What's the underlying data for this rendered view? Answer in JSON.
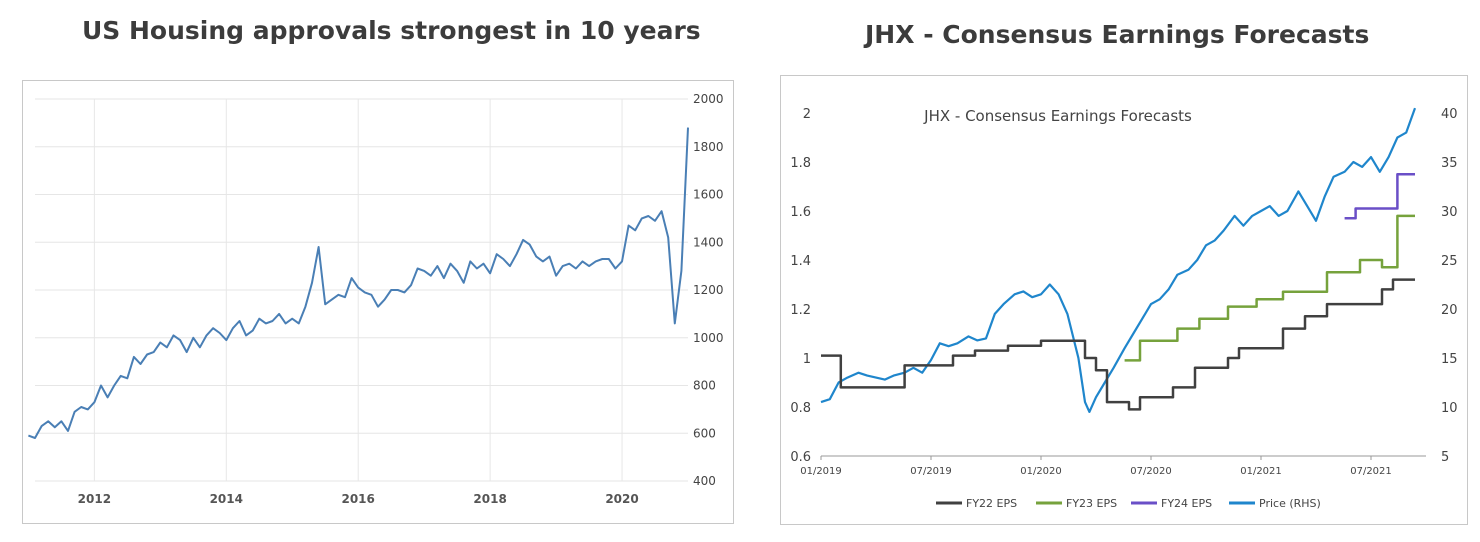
{
  "chart_data": [
    {
      "type": "line",
      "title": "US Housing approvals strongest in 10 years",
      "xlabel": "",
      "ylabel": "",
      "xlim": [
        2011.1,
        2021.0
      ],
      "ylim": [
        400,
        2000
      ],
      "x_ticks": [
        2012,
        2014,
        2016,
        2018,
        2020
      ],
      "y_ticks": [
        400,
        600,
        800,
        1000,
        1200,
        1400,
        1600,
        1800,
        2000
      ],
      "grid": true,
      "legend": "none",
      "color": "#4a7fb5",
      "series": [
        {
          "name": "US Housing approvals",
          "x": [
            2011.0,
            2011.1,
            2011.2,
            2011.3,
            2011.4,
            2011.5,
            2011.6,
            2011.7,
            2011.8,
            2011.9,
            2012.0,
            2012.1,
            2012.2,
            2012.3,
            2012.4,
            2012.5,
            2012.6,
            2012.7,
            2012.8,
            2012.9,
            2013.0,
            2013.1,
            2013.2,
            2013.3,
            2013.4,
            2013.5,
            2013.6,
            2013.7,
            2013.8,
            2013.9,
            2014.0,
            2014.1,
            2014.2,
            2014.3,
            2014.4,
            2014.5,
            2014.6,
            2014.7,
            2014.8,
            2014.9,
            2015.0,
            2015.1,
            2015.2,
            2015.3,
            2015.4,
            2015.5,
            2015.6,
            2015.7,
            2015.8,
            2015.9,
            2016.0,
            2016.1,
            2016.2,
            2016.3,
            2016.4,
            2016.5,
            2016.6,
            2016.7,
            2016.8,
            2016.9,
            2017.0,
            2017.1,
            2017.2,
            2017.3,
            2017.4,
            2017.5,
            2017.6,
            2017.7,
            2017.8,
            2017.9,
            2018.0,
            2018.1,
            2018.2,
            2018.3,
            2018.4,
            2018.5,
            2018.6,
            2018.7,
            2018.8,
            2018.9,
            2019.0,
            2019.1,
            2019.2,
            2019.3,
            2019.4,
            2019.5,
            2019.6,
            2019.7,
            2019.8,
            2019.9,
            2020.0,
            2020.1,
            2020.2,
            2020.3,
            2020.4,
            2020.5,
            2020.6,
            2020.7,
            2020.8,
            2020.9,
            2021.0
          ],
          "values": [
            590,
            580,
            630,
            650,
            625,
            650,
            610,
            690,
            710,
            700,
            730,
            800,
            750,
            800,
            840,
            830,
            920,
            890,
            930,
            940,
            980,
            960,
            1010,
            990,
            940,
            1000,
            960,
            1010,
            1040,
            1020,
            990,
            1040,
            1070,
            1010,
            1030,
            1080,
            1060,
            1070,
            1100,
            1060,
            1080,
            1060,
            1130,
            1230,
            1380,
            1140,
            1160,
            1180,
            1170,
            1250,
            1210,
            1190,
            1180,
            1130,
            1160,
            1200,
            1200,
            1190,
            1220,
            1290,
            1280,
            1260,
            1300,
            1250,
            1310,
            1280,
            1230,
            1320,
            1290,
            1310,
            1270,
            1350,
            1330,
            1300,
            1350,
            1410,
            1390,
            1340,
            1320,
            1340,
            1260,
            1300,
            1310,
            1290,
            1320,
            1300,
            1320,
            1330,
            1330,
            1290,
            1320,
            1470,
            1450,
            1500,
            1510,
            1490,
            1530,
            1420,
            1060,
            1280,
            1880
          ]
        }
      ]
    },
    {
      "type": "line",
      "title": "JHX - Consensus Earnings Forecasts",
      "xlabel": "",
      "ylabel": "",
      "xlim": [
        2019.0,
        2021.75
      ],
      "ylim": [
        0.6,
        2
      ],
      "y2lim": [
        5,
        40
      ],
      "x_ticks": [
        "01/2019",
        "07/2019",
        "01/2020",
        "07/2020",
        "01/2021",
        "07/2021"
      ],
      "x_tick_positions": [
        2019.0,
        2019.5,
        2020.0,
        2020.5,
        2021.0,
        2021.5
      ],
      "y_ticks": [
        0.6,
        0.8,
        1,
        1.2,
        1.4,
        1.6,
        1.8,
        2
      ],
      "y2_ticks": [
        5,
        10,
        15,
        20,
        25,
        30,
        35,
        40
      ],
      "grid": false,
      "legend": "bottom",
      "series": [
        {
          "name": "FY22 EPS",
          "axis": "left",
          "color": "#404040",
          "step": true,
          "x": [
            2019.0,
            2019.09,
            2019.09,
            2019.38,
            2019.38,
            2019.6,
            2019.6,
            2019.7,
            2019.7,
            2019.85,
            2019.85,
            2020.0,
            2020.0,
            2020.2,
            2020.2,
            2020.25,
            2020.25,
            2020.3,
            2020.3,
            2020.4,
            2020.4,
            2020.45,
            2020.45,
            2020.6,
            2020.6,
            2020.7,
            2020.7,
            2020.85,
            2020.85,
            2020.9,
            2020.9,
            2021.1,
            2021.1,
            2021.2,
            2021.2,
            2021.3,
            2021.3,
            2021.55,
            2021.55,
            2021.6,
            2021.6,
            2021.7
          ],
          "values": [
            1.01,
            1.01,
            0.88,
            0.88,
            0.97,
            0.97,
            1.01,
            1.01,
            1.03,
            1.03,
            1.05,
            1.05,
            1.07,
            1.07,
            1.0,
            1.0,
            0.95,
            0.95,
            0.82,
            0.82,
            0.79,
            0.79,
            0.84,
            0.84,
            0.88,
            0.88,
            0.96,
            0.96,
            1.0,
            1.0,
            1.04,
            1.04,
            1.12,
            1.12,
            1.17,
            1.17,
            1.22,
            1.22,
            1.28,
            1.28,
            1.32,
            1.32
          ]
        },
        {
          "name": "FY23 EPS",
          "axis": "left",
          "color": "#76a23c",
          "step": true,
          "x": [
            2020.38,
            2020.45,
            2020.45,
            2020.62,
            2020.62,
            2020.72,
            2020.72,
            2020.85,
            2020.85,
            2020.98,
            2020.98,
            2021.1,
            2021.1,
            2021.3,
            2021.3,
            2021.45,
            2021.45,
            2021.55,
            2021.55,
            2021.62,
            2021.62,
            2021.7
          ],
          "values": [
            0.99,
            0.99,
            1.07,
            1.07,
            1.12,
            1.12,
            1.16,
            1.16,
            1.21,
            1.21,
            1.24,
            1.24,
            1.27,
            1.27,
            1.35,
            1.35,
            1.4,
            1.4,
            1.37,
            1.37,
            1.58,
            1.58
          ]
        },
        {
          "name": "FY24 EPS",
          "axis": "left",
          "color": "#6a4fc7",
          "step": true,
          "x": [
            2021.38,
            2021.43,
            2021.43,
            2021.62,
            2021.62,
            2021.7
          ],
          "values": [
            1.57,
            1.57,
            1.61,
            1.61,
            1.75,
            1.75
          ]
        },
        {
          "name": "Price (RHS)",
          "axis": "right",
          "color": "#1f86cc",
          "step": false,
          "x": [
            2019.0,
            2019.04,
            2019.08,
            2019.12,
            2019.17,
            2019.21,
            2019.25,
            2019.29,
            2019.33,
            2019.38,
            2019.42,
            2019.46,
            2019.5,
            2019.54,
            2019.58,
            2019.62,
            2019.67,
            2019.71,
            2019.75,
            2019.79,
            2019.83,
            2019.88,
            2019.92,
            2019.96,
            2020.0,
            2020.04,
            2020.08,
            2020.12,
            2020.17,
            2020.2,
            2020.22,
            2020.25,
            2020.29,
            2020.33,
            2020.38,
            2020.42,
            2020.46,
            2020.5,
            2020.54,
            2020.58,
            2020.62,
            2020.67,
            2020.71,
            2020.75,
            2020.79,
            2020.83,
            2020.88,
            2020.92,
            2020.96,
            2021.0,
            2021.04,
            2021.08,
            2021.12,
            2021.17,
            2021.21,
            2021.25,
            2021.29,
            2021.33,
            2021.38,
            2021.42,
            2021.46,
            2021.5,
            2021.54,
            2021.58,
            2021.62,
            2021.66,
            2021.7
          ],
          "values": [
            10.5,
            10.8,
            12.5,
            13.0,
            13.5,
            13.2,
            13.0,
            12.8,
            13.2,
            13.5,
            14.0,
            13.5,
            14.8,
            16.5,
            16.2,
            16.5,
            17.2,
            16.8,
            17.0,
            19.5,
            20.5,
            21.5,
            21.8,
            21.2,
            21.5,
            22.5,
            21.5,
            19.5,
            15.0,
            10.5,
            9.5,
            11.0,
            12.5,
            14.0,
            16.0,
            17.5,
            19.0,
            20.5,
            21.0,
            22.0,
            23.5,
            24.0,
            25.0,
            26.5,
            27.0,
            28.0,
            29.5,
            28.5,
            29.5,
            30.0,
            30.5,
            29.5,
            30.0,
            32.0,
            30.5,
            29.0,
            31.5,
            33.5,
            34.0,
            35.0,
            34.5,
            35.5,
            34.0,
            35.5,
            37.5,
            38.0,
            40.5
          ]
        }
      ]
    }
  ],
  "axis_labels": {
    "c1_y": [
      "400",
      "600",
      "800",
      "1000",
      "1200",
      "1400",
      "1600",
      "1800",
      "2000"
    ],
    "c1_x": [
      "2012",
      "2014",
      "2016",
      "2018",
      "2020"
    ],
    "c2_y": [
      "0.6",
      "0.8",
      "1",
      "1.2",
      "1.4",
      "1.6",
      "1.8",
      "2"
    ],
    "c2_y2": [
      "5",
      "10",
      "15",
      "20",
      "25",
      "30",
      "35",
      "40"
    ],
    "c2_x": [
      "01/2019",
      "07/2019",
      "01/2020",
      "07/2020",
      "01/2021",
      "07/2021"
    ]
  }
}
